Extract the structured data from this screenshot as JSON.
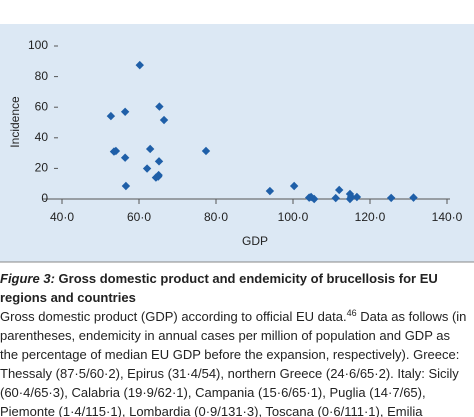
{
  "chart_data": {
    "type": "scatter",
    "x_label": "GDP",
    "y_label": "Incidence",
    "x": [
      60.2,
      54,
      65.2,
      65.3,
      62.1,
      65.1,
      65,
      115.1,
      131.3,
      111.1,
      52.7,
      56.4,
      53.5,
      56.4,
      56.6,
      66.5,
      62.9,
      64.4,
      77.4,
      94,
      100.3,
      104.7,
      105.5,
      104.2,
      112,
      114.8,
      114.8,
      116.6,
      125.5
    ],
    "values": [
      87.5,
      31.4,
      24.6,
      60.4,
      19.9,
      15.6,
      14.7,
      1.4,
      0.9,
      0.6,
      54.2,
      57,
      31,
      27,
      8.5,
      51.6,
      32.7,
      14,
      31.4,
      5.2,
      8.5,
      1.3,
      0,
      0.9,
      5.9,
      3.3,
      0,
      1.3,
      0.7
    ],
    "color": "#1f5fa8",
    "xlim": [
      40,
      140
    ],
    "ylim": [
      0,
      100
    ],
    "xticks": [
      {
        "value": 40,
        "label": "40·0"
      },
      {
        "value": 60,
        "label": "60·0"
      },
      {
        "value": 80,
        "label": "80·0"
      },
      {
        "value": 100,
        "label": "100·0"
      },
      {
        "value": 120,
        "label": "120·0"
      },
      {
        "value": 140,
        "label": "140·0"
      }
    ],
    "yticks": [
      0,
      20,
      40,
      60,
      80,
      100
    ]
  },
  "caption": {
    "label": "Figure 3:",
    "title_lines": [
      " Gross domestic product and endemicity of brucellosis for EU",
      "regions and countries"
    ],
    "first_line": [
      "Gross domestic product (GDP) according to official EU data.",
      "46",
      " Data as follows (in"
    ],
    "lines": [
      "parentheses, endemicity in annual cases per million of population and GDP as",
      "the percentage of median EU GDP before the expansion, respectively). Greece:",
      "Thessaly (87·5/60·2), Epirus (31·4/54), northern Greece (24·6/65·2). Italy: Sicily",
      "(60·4/65·3), Calabria (19·9/62·1), Campania (15·6/65·1), Puglia (14·7/65),",
      "Piemonte (1·4/115·1), Lombardia (0·9/131·3), Toscana (0·6/111·1), Emilia"
    ]
  }
}
